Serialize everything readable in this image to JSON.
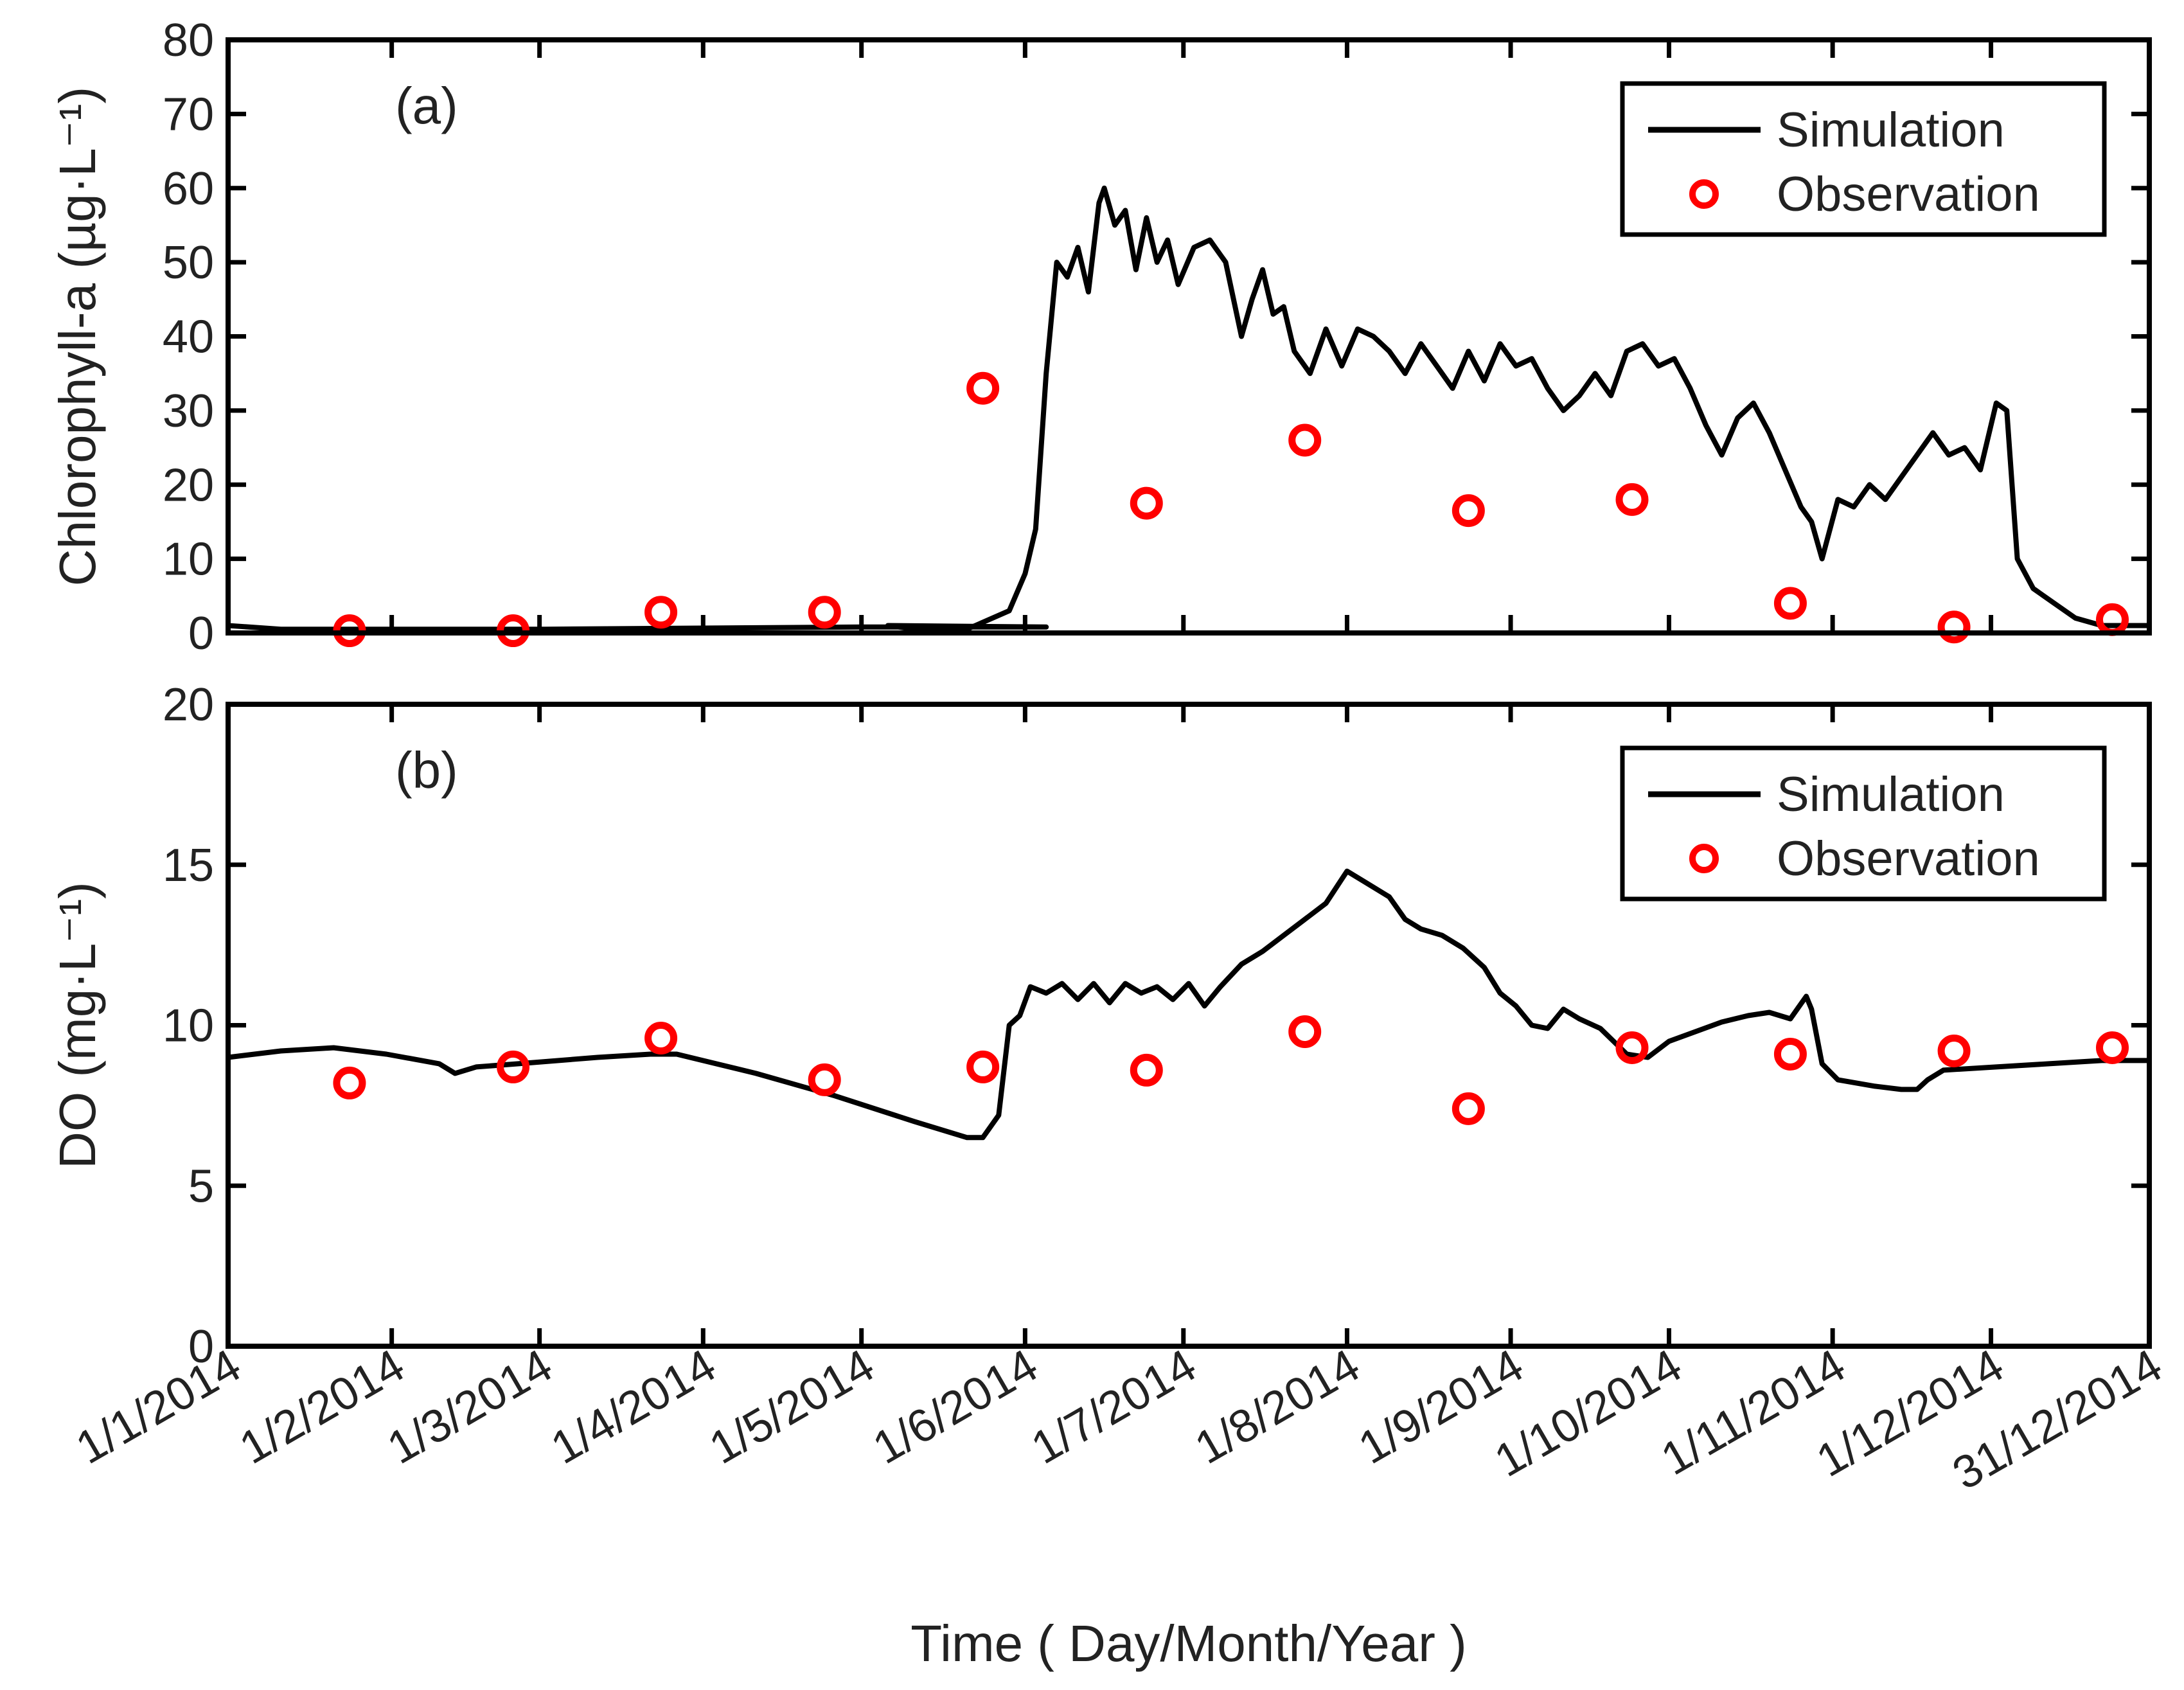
{
  "chart_data": [
    {
      "type": "line",
      "panel_label": "(a)",
      "ylabel": "Chlorophyll-a (µg·L⁻¹)",
      "ylim": [
        0,
        80
      ],
      "yticks": [
        0,
        10,
        20,
        30,
        40,
        50,
        60,
        70,
        80
      ],
      "xlim": [
        0,
        364
      ],
      "legend": {
        "position": "top-right",
        "entries": [
          "Simulation",
          "Observation"
        ]
      },
      "series": [
        {
          "name": "Simulation",
          "style": "line",
          "color": "#000000",
          "points": [
            [
              0,
              1
            ],
            [
              10,
              0.5
            ],
            [
              60,
              0.5
            ],
            [
              120,
              0.8
            ],
            [
              155,
              0.8
            ],
            [
              125,
              1
            ],
            [
              130,
              0.5
            ],
            [
              140,
              0.5
            ],
            [
              148,
              3
            ],
            [
              151,
              8
            ],
            [
              153,
              14
            ],
            [
              155,
              35
            ],
            [
              157,
              50
            ],
            [
              159,
              48
            ],
            [
              161,
              52
            ],
            [
              163,
              46
            ],
            [
              165,
              58
            ],
            [
              166,
              60
            ],
            [
              168,
              55
            ],
            [
              170,
              57
            ],
            [
              172,
              49
            ],
            [
              174,
              56
            ],
            [
              176,
              50
            ],
            [
              178,
              53
            ],
            [
              180,
              47
            ],
            [
              183,
              52
            ],
            [
              186,
              53
            ],
            [
              189,
              50
            ],
            [
              192,
              40
            ],
            [
              194,
              45
            ],
            [
              196,
              49
            ],
            [
              198,
              43
            ],
            [
              200,
              44
            ],
            [
              202,
              38
            ],
            [
              205,
              35
            ],
            [
              208,
              41
            ],
            [
              211,
              36
            ],
            [
              214,
              41
            ],
            [
              217,
              40
            ],
            [
              220,
              38
            ],
            [
              223,
              35
            ],
            [
              226,
              39
            ],
            [
              229,
              36
            ],
            [
              232,
              33
            ],
            [
              235,
              38
            ],
            [
              238,
              34
            ],
            [
              241,
              39
            ],
            [
              244,
              36
            ],
            [
              247,
              37
            ],
            [
              250,
              33
            ],
            [
              253,
              30
            ],
            [
              256,
              32
            ],
            [
              259,
              35
            ],
            [
              262,
              32
            ],
            [
              265,
              38
            ],
            [
              268,
              39
            ],
            [
              271,
              36
            ],
            [
              274,
              37
            ],
            [
              277,
              33
            ],
            [
              280,
              28
            ],
            [
              283,
              24
            ],
            [
              286,
              29
            ],
            [
              289,
              31
            ],
            [
              292,
              27
            ],
            [
              295,
              22
            ],
            [
              298,
              17
            ],
            [
              300,
              15
            ],
            [
              302,
              10
            ],
            [
              305,
              18
            ],
            [
              308,
              17
            ],
            [
              311,
              20
            ],
            [
              314,
              18
            ],
            [
              317,
              21
            ],
            [
              320,
              24
            ],
            [
              323,
              27
            ],
            [
              326,
              24
            ],
            [
              329,
              25
            ],
            [
              332,
              22
            ],
            [
              335,
              31
            ],
            [
              337,
              30
            ],
            [
              339,
              10
            ],
            [
              342,
              6
            ],
            [
              346,
              4
            ],
            [
              350,
              2
            ],
            [
              355,
              1
            ],
            [
              364,
              1
            ]
          ]
        },
        {
          "name": "Observation",
          "style": "markers",
          "color": "#ff0000",
          "points": [
            [
              23,
              0.3
            ],
            [
              54,
              0.3
            ],
            [
              82,
              2.8
            ],
            [
              113,
              2.8
            ],
            [
              143,
              33
            ],
            [
              174,
              17.5
            ],
            [
              204,
              26
            ],
            [
              235,
              16.5
            ],
            [
              266,
              18
            ],
            [
              296,
              4
            ],
            [
              327,
              0.8
            ],
            [
              357,
              1.8
            ]
          ]
        }
      ]
    },
    {
      "type": "line",
      "panel_label": "(b)",
      "ylabel": "DO (mg·L⁻¹)",
      "ylim": [
        0,
        20
      ],
      "yticks": [
        0,
        5,
        10,
        15,
        20
      ],
      "xlim": [
        0,
        364
      ],
      "xlabel": "Time ( Day/Month/Year )",
      "xticks": [
        0,
        31,
        59,
        90,
        120,
        151,
        181,
        212,
        243,
        273,
        304,
        334,
        364
      ],
      "xticklabels": [
        "1/1/2014",
        "1/2/2014",
        "1/3/2014",
        "1/4/2014",
        "1/5/2014",
        "1/6/2014",
        "1/7/2014",
        "1/8/2014",
        "1/9/2014",
        "1/10/2014",
        "1/11/2014",
        "1/12/2014",
        "31/12/2014"
      ],
      "legend": {
        "position": "top-right",
        "entries": [
          "Simulation",
          "Observation"
        ]
      },
      "series": [
        {
          "name": "Simulation",
          "style": "line",
          "color": "#000000",
          "points": [
            [
              0,
              9
            ],
            [
              10,
              9.2
            ],
            [
              20,
              9.3
            ],
            [
              30,
              9.1
            ],
            [
              40,
              8.8
            ],
            [
              43,
              8.5
            ],
            [
              47,
              8.7
            ],
            [
              55,
              8.8
            ],
            [
              70,
              9
            ],
            [
              80,
              9.1
            ],
            [
              85,
              9.1
            ],
            [
              100,
              8.5
            ],
            [
              115,
              7.8
            ],
            [
              130,
              7
            ],
            [
              140,
              6.5
            ],
            [
              143,
              6.5
            ],
            [
              146,
              7.2
            ],
            [
              148,
              10
            ],
            [
              150,
              10.3
            ],
            [
              152,
              11.2
            ],
            [
              155,
              11
            ],
            [
              158,
              11.3
            ],
            [
              161,
              10.8
            ],
            [
              164,
              11.3
            ],
            [
              167,
              10.7
            ],
            [
              170,
              11.3
            ],
            [
              173,
              11
            ],
            [
              176,
              11.2
            ],
            [
              179,
              10.8
            ],
            [
              182,
              11.3
            ],
            [
              185,
              10.6
            ],
            [
              188,
              11.2
            ],
            [
              192,
              11.9
            ],
            [
              196,
              12.3
            ],
            [
              200,
              12.8
            ],
            [
              204,
              13.3
            ],
            [
              208,
              13.8
            ],
            [
              210,
              14.3
            ],
            [
              212,
              14.8
            ],
            [
              215,
              14.5
            ],
            [
              220,
              14
            ],
            [
              223,
              13.3
            ],
            [
              226,
              13
            ],
            [
              230,
              12.8
            ],
            [
              234,
              12.4
            ],
            [
              238,
              11.8
            ],
            [
              241,
              11
            ],
            [
              244,
              10.6
            ],
            [
              247,
              10
            ],
            [
              250,
              9.9
            ],
            [
              253,
              10.5
            ],
            [
              256,
              10.2
            ],
            [
              260,
              9.9
            ],
            [
              265,
              9.1
            ],
            [
              269,
              9
            ],
            [
              273,
              9.5
            ],
            [
              278,
              9.8
            ],
            [
              283,
              10.1
            ],
            [
              288,
              10.3
            ],
            [
              292,
              10.4
            ],
            [
              296,
              10.2
            ],
            [
              299,
              10.9
            ],
            [
              300,
              10.5
            ],
            [
              302,
              8.8
            ],
            [
              305,
              8.3
            ],
            [
              312,
              8.1
            ],
            [
              317,
              8
            ],
            [
              320,
              8
            ],
            [
              322,
              8.3
            ],
            [
              325,
              8.6
            ],
            [
              335,
              8.7
            ],
            [
              345,
              8.8
            ],
            [
              355,
              8.9
            ],
            [
              364,
              8.9
            ]
          ]
        },
        {
          "name": "Observation",
          "style": "markers",
          "color": "#ff0000",
          "points": [
            [
              23,
              8.2
            ],
            [
              54,
              8.7
            ],
            [
              82,
              9.6
            ],
            [
              113,
              8.3
            ],
            [
              143,
              8.7
            ],
            [
              174,
              8.6
            ],
            [
              204,
              9.8
            ],
            [
              235,
              7.4
            ],
            [
              266,
              9.3
            ],
            [
              296,
              9.1
            ],
            [
              327,
              9.2
            ],
            [
              357,
              9.3
            ]
          ]
        }
      ]
    }
  ]
}
